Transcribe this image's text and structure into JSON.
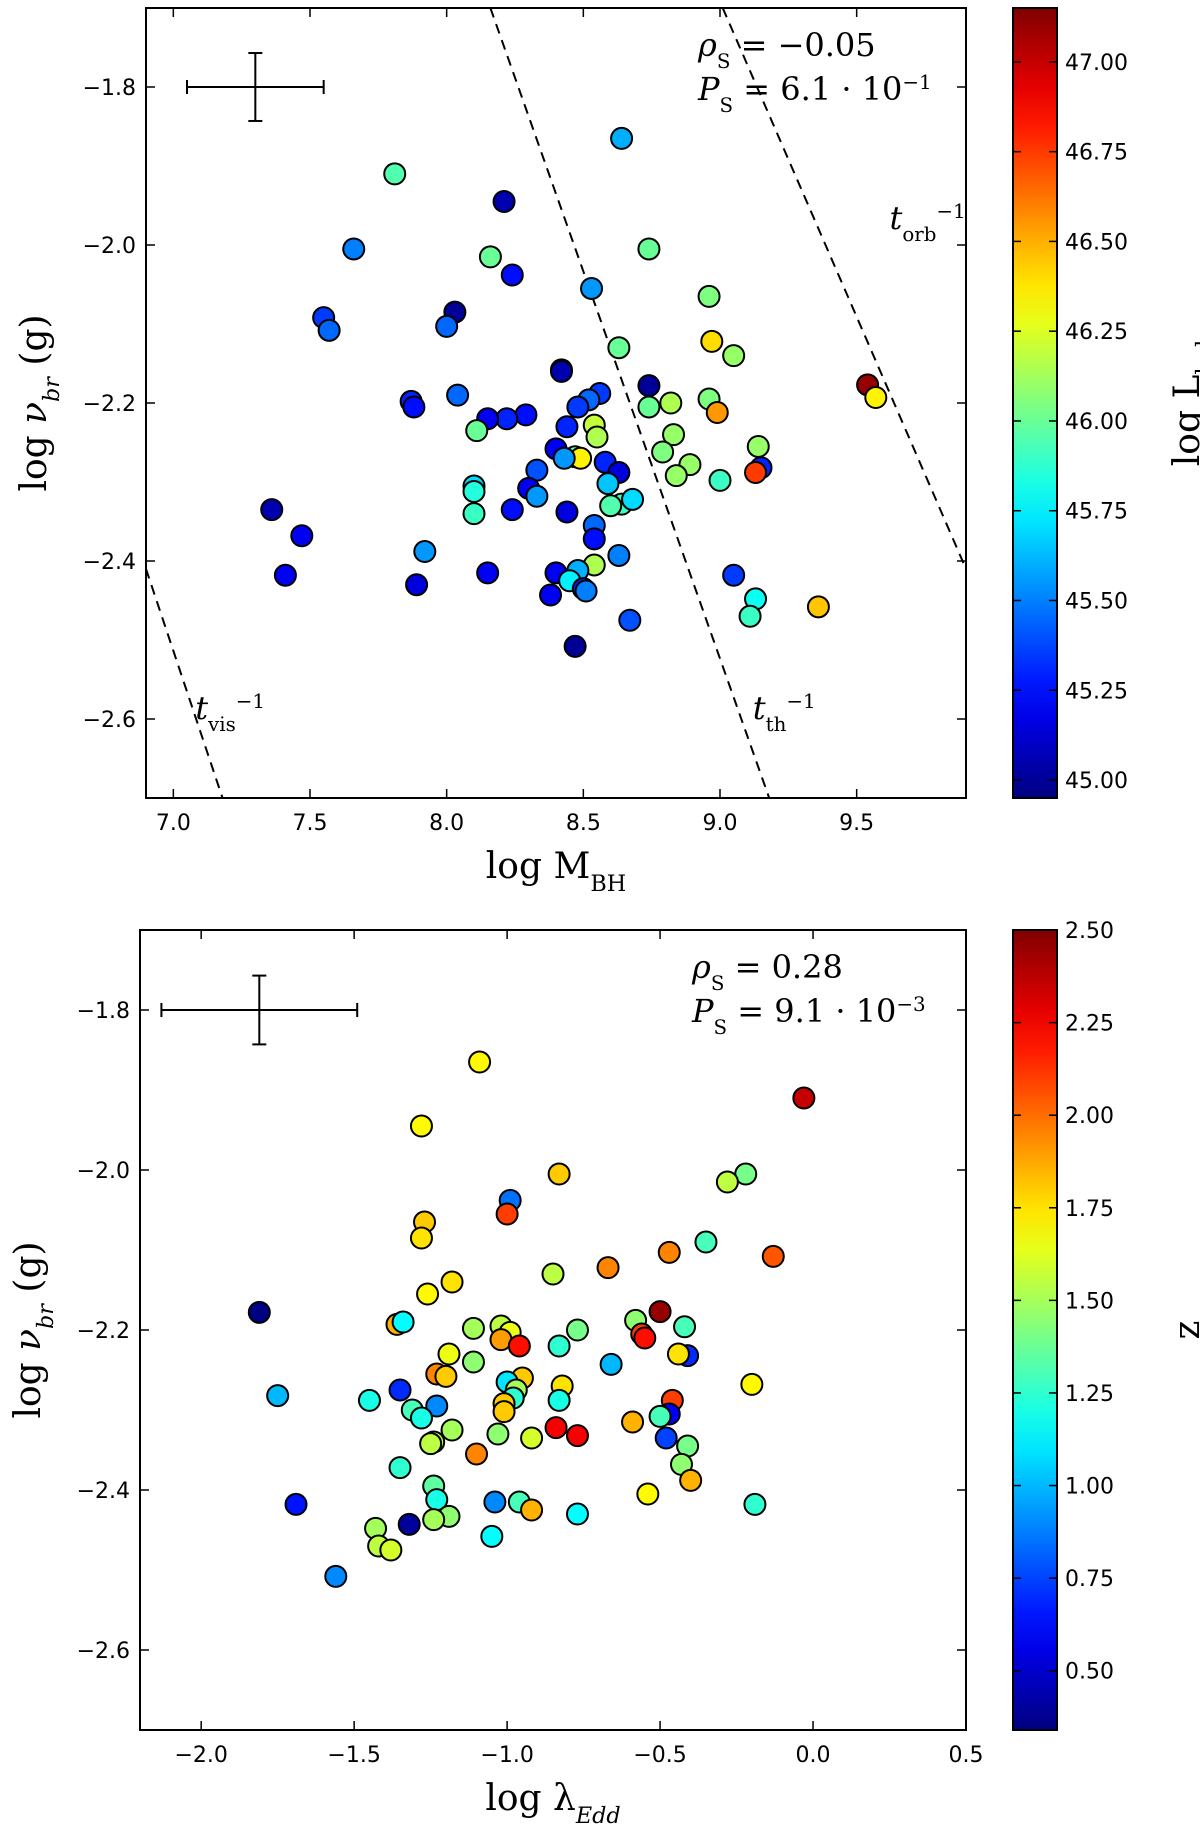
{
  "chart_data": [
    {
      "type": "scatter",
      "xlabel": "log M",
      "xlabel_sub": "BH",
      "ylabel": "log ν",
      "ylabel_sub": "br",
      "ylabel_unit": "(g)",
      "xlim": [
        6.9,
        9.9
      ],
      "ylim": [
        -2.7,
        -1.7
      ],
      "xticks": [
        7.0,
        7.5,
        8.0,
        8.5,
        9.0,
        9.5
      ],
      "xtick_labels": [
        "7.0",
        "7.5",
        "8.0",
        "8.5",
        "9.0",
        "9.5"
      ],
      "yticks": [
        -1.8,
        -2.0,
        -2.2,
        -2.4,
        -2.6
      ],
      "ytick_labels": [
        "−1.8",
        "−2.0",
        "−2.2",
        "−2.4",
        "−2.6"
      ],
      "grid": false,
      "stats": {
        "rho_label": "ρ",
        "rho_sub": "S",
        "rho_value": "= −0.05",
        "p_label": "P",
        "p_sub": "S",
        "p_value": "= 6.1 · 10",
        "p_exp": "−1"
      },
      "error_bar": {
        "x": 7.3,
        "y": -1.8,
        "xerr_low": 0.25,
        "xerr_high": 0.25,
        "yerr": 0.043
      },
      "lines": [
        {
          "label": "t",
          "label_sub": "vis",
          "label_sup": "−1",
          "points": [
            [
              6.9,
              -2.41
            ],
            [
              7.18,
              -2.7
            ]
          ],
          "label_at": [
            7.08,
            -2.6
          ]
        },
        {
          "label": "t",
          "label_sub": "th",
          "label_sup": "−1",
          "points": [
            [
              8.16,
              -1.7
            ],
            [
              9.18,
              -2.7
            ]
          ],
          "label_at": [
            9.12,
            -2.6
          ]
        },
        {
          "label": "t",
          "label_sub": "orb",
          "label_sup": "−1",
          "points": [
            [
              9.01,
              -1.7
            ],
            [
              9.9,
              -2.41
            ]
          ],
          "label_at": [
            9.62,
            -1.98
          ]
        }
      ],
      "colorbar": {
        "label": "log L",
        "label_sub": "bol",
        "min": 44.95,
        "max": 47.15,
        "ticks": [
          45.0,
          45.25,
          45.5,
          45.75,
          46.0,
          46.25,
          46.5,
          46.75,
          47.0
        ],
        "tick_labels": [
          "45.00",
          "45.25",
          "45.50",
          "45.75",
          "46.00",
          "46.25",
          "46.50",
          "46.75",
          "47.00"
        ]
      },
      "points": [
        {
          "x": 8.64,
          "y": -1.865,
          "c": 45.6
        },
        {
          "x": 7.81,
          "y": -1.91,
          "c": 45.95
        },
        {
          "x": 8.21,
          "y": -1.945,
          "c": 45.05
        },
        {
          "x": 7.66,
          "y": -2.005,
          "c": 45.5
        },
        {
          "x": 8.74,
          "y": -2.005,
          "c": 46.0
        },
        {
          "x": 8.16,
          "y": -2.015,
          "c": 46.0
        },
        {
          "x": 8.24,
          "y": -2.038,
          "c": 45.25
        },
        {
          "x": 8.53,
          "y": -2.055,
          "c": 45.55
        },
        {
          "x": 8.96,
          "y": -2.065,
          "c": 46.05
        },
        {
          "x": 8.03,
          "y": -2.085,
          "c": 45.0
        },
        {
          "x": 7.55,
          "y": -2.092,
          "c": 45.35
        },
        {
          "x": 7.57,
          "y": -2.108,
          "c": 45.45
        },
        {
          "x": 8.0,
          "y": -2.103,
          "c": 45.45
        },
        {
          "x": 8.97,
          "y": -2.122,
          "c": 46.4
        },
        {
          "x": 8.63,
          "y": -2.13,
          "c": 46.0
        },
        {
          "x": 9.05,
          "y": -2.14,
          "c": 46.1
        },
        {
          "x": 8.42,
          "y": -2.158,
          "c": 45.2
        },
        {
          "x": 8.42,
          "y": -2.16,
          "c": 45.05
        },
        {
          "x": 9.54,
          "y": -2.177,
          "c": 47.1
        },
        {
          "x": 8.74,
          "y": -2.178,
          "c": 45.0
        },
        {
          "x": 9.57,
          "y": -2.193,
          "c": 46.35
        },
        {
          "x": 8.56,
          "y": -2.188,
          "c": 45.35
        },
        {
          "x": 8.52,
          "y": -2.196,
          "c": 45.45
        },
        {
          "x": 8.04,
          "y": -2.19,
          "c": 45.45
        },
        {
          "x": 7.87,
          "y": -2.198,
          "c": 45.3
        },
        {
          "x": 7.88,
          "y": -2.205,
          "c": 45.25
        },
        {
          "x": 8.82,
          "y": -2.2,
          "c": 46.15
        },
        {
          "x": 8.96,
          "y": -2.195,
          "c": 46.05
        },
        {
          "x": 8.74,
          "y": -2.205,
          "c": 46.0
        },
        {
          "x": 8.48,
          "y": -2.205,
          "c": 45.35
        },
        {
          "x": 8.99,
          "y": -2.212,
          "c": 46.55
        },
        {
          "x": 8.29,
          "y": -2.215,
          "c": 45.25
        },
        {
          "x": 8.22,
          "y": -2.22,
          "c": 45.3
        },
        {
          "x": 8.15,
          "y": -2.22,
          "c": 45.2
        },
        {
          "x": 8.54,
          "y": -2.228,
          "c": 46.2
        },
        {
          "x": 8.44,
          "y": -2.23,
          "c": 45.3
        },
        {
          "x": 8.11,
          "y": -2.235,
          "c": 46.0
        },
        {
          "x": 8.55,
          "y": -2.243,
          "c": 46.15
        },
        {
          "x": 8.83,
          "y": -2.24,
          "c": 46.1
        },
        {
          "x": 9.14,
          "y": -2.255,
          "c": 46.1
        },
        {
          "x": 8.4,
          "y": -2.258,
          "c": 45.2
        },
        {
          "x": 8.79,
          "y": -2.262,
          "c": 46.05
        },
        {
          "x": 8.47,
          "y": -2.268,
          "c": 46.0
        },
        {
          "x": 8.49,
          "y": -2.27,
          "c": 46.35
        },
        {
          "x": 8.43,
          "y": -2.27,
          "c": 45.55
        },
        {
          "x": 8.58,
          "y": -2.275,
          "c": 45.3
        },
        {
          "x": 9.15,
          "y": -2.282,
          "c": 45.3
        },
        {
          "x": 8.33,
          "y": -2.285,
          "c": 45.4
        },
        {
          "x": 8.63,
          "y": -2.288,
          "c": 45.15
        },
        {
          "x": 9.13,
          "y": -2.288,
          "c": 46.75
        },
        {
          "x": 8.89,
          "y": -2.278,
          "c": 46.1
        },
        {
          "x": 8.84,
          "y": -2.292,
          "c": 46.1
        },
        {
          "x": 8.59,
          "y": -2.302,
          "c": 45.65
        },
        {
          "x": 9.0,
          "y": -2.298,
          "c": 45.9
        },
        {
          "x": 8.1,
          "y": -2.305,
          "c": 45.7
        },
        {
          "x": 8.1,
          "y": -2.312,
          "c": 45.85
        },
        {
          "x": 8.3,
          "y": -2.308,
          "c": 45.2
        },
        {
          "x": 8.33,
          "y": -2.318,
          "c": 45.55
        },
        {
          "x": 8.64,
          "y": -2.328,
          "c": 45.9
        },
        {
          "x": 8.6,
          "y": -2.33,
          "c": 45.95
        },
        {
          "x": 8.68,
          "y": -2.322,
          "c": 45.7
        },
        {
          "x": 8.24,
          "y": -2.335,
          "c": 45.25
        },
        {
          "x": 8.1,
          "y": -2.34,
          "c": 45.9
        },
        {
          "x": 8.44,
          "y": -2.338,
          "c": 45.15
        },
        {
          "x": 7.36,
          "y": -2.335,
          "c": 45.05
        },
        {
          "x": 8.54,
          "y": -2.355,
          "c": 45.45
        },
        {
          "x": 8.54,
          "y": -2.372,
          "c": 45.25
        },
        {
          "x": 7.47,
          "y": -2.368,
          "c": 45.2
        },
        {
          "x": 7.92,
          "y": -2.388,
          "c": 45.55
        },
        {
          "x": 8.63,
          "y": -2.393,
          "c": 45.5
        },
        {
          "x": 8.54,
          "y": -2.405,
          "c": 46.15
        },
        {
          "x": 8.4,
          "y": -2.415,
          "c": 45.2
        },
        {
          "x": 8.15,
          "y": -2.415,
          "c": 45.2
        },
        {
          "x": 7.41,
          "y": -2.418,
          "c": 45.2
        },
        {
          "x": 8.48,
          "y": -2.412,
          "c": 45.6
        },
        {
          "x": 9.05,
          "y": -2.418,
          "c": 45.35
        },
        {
          "x": 8.45,
          "y": -2.425,
          "c": 45.75
        },
        {
          "x": 7.89,
          "y": -2.43,
          "c": 45.15
        },
        {
          "x": 8.5,
          "y": -2.435,
          "c": 45.3
        },
        {
          "x": 8.51,
          "y": -2.438,
          "c": 45.5
        },
        {
          "x": 9.13,
          "y": -2.448,
          "c": 45.8
        },
        {
          "x": 8.38,
          "y": -2.443,
          "c": 45.2
        },
        {
          "x": 9.36,
          "y": -2.458,
          "c": 46.45
        },
        {
          "x": 9.11,
          "y": -2.47,
          "c": 45.9
        },
        {
          "x": 8.67,
          "y": -2.475,
          "c": 45.4
        },
        {
          "x": 8.47,
          "y": -2.508,
          "c": 45.0
        }
      ]
    },
    {
      "type": "scatter",
      "xlabel": "log λ",
      "xlabel_sub": "Edd",
      "ylabel": "log ν",
      "ylabel_sub": "br",
      "ylabel_unit": "(g)",
      "xlim": [
        -2.2,
        0.5
      ],
      "ylim": [
        -2.7,
        -1.7
      ],
      "xticks": [
        -2.0,
        -1.5,
        -1.0,
        -0.5,
        0.0,
        0.5
      ],
      "xtick_labels": [
        "−2.0",
        "−1.5",
        "−1.0",
        "−0.5",
        "0.0",
        "0.5"
      ],
      "yticks": [
        -1.8,
        -2.0,
        -2.2,
        -2.4,
        -2.6
      ],
      "ytick_labels": [
        "−1.8",
        "−2.0",
        "−2.2",
        "−2.4",
        "−2.6"
      ],
      "grid": false,
      "stats": {
        "rho_label": "ρ",
        "rho_sub": "S",
        "rho_value": "= 0.28",
        "p_label": "P",
        "p_sub": "S",
        "p_value": "= 9.1 · 10",
        "p_exp": "−3"
      },
      "error_bar": {
        "x": -1.81,
        "y": -1.8,
        "xerr_low": 0.32,
        "xerr_high": 0.32,
        "yerr": 0.043
      },
      "colorbar": {
        "label": "z",
        "label_sub": "",
        "min": 0.34,
        "max": 2.5,
        "ticks": [
          0.5,
          0.75,
          1.0,
          1.25,
          1.5,
          1.75,
          2.0,
          2.25,
          2.5
        ],
        "tick_labels": [
          "0.50",
          "0.75",
          "1.00",
          "1.25",
          "1.50",
          "1.75",
          "2.00",
          "2.25",
          "2.50"
        ]
      },
      "points": [
        {
          "x": -1.09,
          "y": -1.865,
          "c": 1.7
        },
        {
          "x": -0.03,
          "y": -1.91,
          "c": 2.35
        },
        {
          "x": -1.28,
          "y": -1.945,
          "c": 1.7
        },
        {
          "x": -0.83,
          "y": -2.005,
          "c": 1.8
        },
        {
          "x": -0.22,
          "y": -2.005,
          "c": 1.4
        },
        {
          "x": -0.28,
          "y": -2.015,
          "c": 1.55
        },
        {
          "x": -0.99,
          "y": -2.038,
          "c": 0.85
        },
        {
          "x": -1.0,
          "y": -2.055,
          "c": 2.1
        },
        {
          "x": -1.27,
          "y": -2.065,
          "c": 1.8
        },
        {
          "x": -1.28,
          "y": -2.085,
          "c": 1.75
        },
        {
          "x": -0.35,
          "y": -2.09,
          "c": 1.3
        },
        {
          "x": -0.47,
          "y": -2.103,
          "c": 1.95
        },
        {
          "x": -0.13,
          "y": -2.108,
          "c": 2.05
        },
        {
          "x": -0.67,
          "y": -2.122,
          "c": 1.95
        },
        {
          "x": -0.85,
          "y": -2.13,
          "c": 1.55
        },
        {
          "x": -1.18,
          "y": -2.14,
          "c": 1.75
        },
        {
          "x": -1.26,
          "y": -2.155,
          "c": 1.7
        },
        {
          "x": -1.81,
          "y": -2.178,
          "c": 0.35
        },
        {
          "x": -0.5,
          "y": -2.177,
          "c": 2.45
        },
        {
          "x": -1.36,
          "y": -2.193,
          "c": 1.85
        },
        {
          "x": -0.58,
          "y": -2.188,
          "c": 1.45
        },
        {
          "x": -0.42,
          "y": -2.196,
          "c": 1.3
        },
        {
          "x": -1.11,
          "y": -2.198,
          "c": 1.5
        },
        {
          "x": -1.34,
          "y": -2.19,
          "c": 1.15
        },
        {
          "x": -1.02,
          "y": -2.195,
          "c": 1.55
        },
        {
          "x": -0.77,
          "y": -2.2,
          "c": 1.4
        },
        {
          "x": -0.99,
          "y": -2.203,
          "c": 1.65
        },
        {
          "x": -0.56,
          "y": -2.205,
          "c": 2.1
        },
        {
          "x": -0.55,
          "y": -2.21,
          "c": 2.2
        },
        {
          "x": -1.02,
          "y": -2.212,
          "c": 1.9
        },
        {
          "x": -0.96,
          "y": -2.22,
          "c": 2.2
        },
        {
          "x": -0.83,
          "y": -2.22,
          "c": 1.25
        },
        {
          "x": -0.41,
          "y": -2.232,
          "c": 0.7
        },
        {
          "x": -0.44,
          "y": -2.23,
          "c": 1.75
        },
        {
          "x": -1.19,
          "y": -2.23,
          "c": 1.65
        },
        {
          "x": -1.11,
          "y": -2.24,
          "c": 1.45
        },
        {
          "x": -0.66,
          "y": -2.243,
          "c": 1.0
        },
        {
          "x": -1.23,
          "y": -2.255,
          "c": 1.95
        },
        {
          "x": -1.2,
          "y": -2.258,
          "c": 1.8
        },
        {
          "x": -0.95,
          "y": -2.26,
          "c": 1.8
        },
        {
          "x": -1.0,
          "y": -2.265,
          "c": 1.1
        },
        {
          "x": -0.82,
          "y": -2.27,
          "c": 1.75
        },
        {
          "x": -0.2,
          "y": -2.268,
          "c": 1.7
        },
        {
          "x": -0.97,
          "y": -2.275,
          "c": 1.5
        },
        {
          "x": -1.75,
          "y": -2.282,
          "c": 1.0
        },
        {
          "x": -1.35,
          "y": -2.275,
          "c": 0.7
        },
        {
          "x": -0.46,
          "y": -2.288,
          "c": 2.1
        },
        {
          "x": -1.45,
          "y": -2.288,
          "c": 1.2
        },
        {
          "x": -0.98,
          "y": -2.285,
          "c": 1.25
        },
        {
          "x": -1.01,
          "y": -2.292,
          "c": 1.8
        },
        {
          "x": -0.83,
          "y": -2.288,
          "c": 1.2
        },
        {
          "x": -1.23,
          "y": -2.295,
          "c": 0.9
        },
        {
          "x": -1.01,
          "y": -2.302,
          "c": 1.8
        },
        {
          "x": -0.47,
          "y": -2.305,
          "c": 0.6
        },
        {
          "x": -1.31,
          "y": -2.3,
          "c": 1.3
        },
        {
          "x": -0.5,
          "y": -2.308,
          "c": 1.3
        },
        {
          "x": -1.28,
          "y": -2.31,
          "c": 1.2
        },
        {
          "x": -0.59,
          "y": -2.315,
          "c": 1.85
        },
        {
          "x": -0.84,
          "y": -2.322,
          "c": 2.25
        },
        {
          "x": -1.18,
          "y": -2.325,
          "c": 1.5
        },
        {
          "x": -1.03,
          "y": -2.33,
          "c": 1.45
        },
        {
          "x": -0.77,
          "y": -2.332,
          "c": 2.25
        },
        {
          "x": -0.48,
          "y": -2.335,
          "c": 0.75
        },
        {
          "x": -0.92,
          "y": -2.335,
          "c": 1.6
        },
        {
          "x": -1.24,
          "y": -2.34,
          "c": 1.55
        },
        {
          "x": -1.25,
          "y": -2.342,
          "c": 1.55
        },
        {
          "x": -1.1,
          "y": -2.355,
          "c": 1.95
        },
        {
          "x": -0.41,
          "y": -2.345,
          "c": 1.4
        },
        {
          "x": -0.43,
          "y": -2.368,
          "c": 1.45
        },
        {
          "x": -1.35,
          "y": -2.372,
          "c": 1.25
        },
        {
          "x": -0.4,
          "y": -2.388,
          "c": 1.85
        },
        {
          "x": -1.24,
          "y": -2.395,
          "c": 1.35
        },
        {
          "x": -0.54,
          "y": -2.405,
          "c": 1.7
        },
        {
          "x": -1.23,
          "y": -2.412,
          "c": 1.2
        },
        {
          "x": -1.04,
          "y": -2.415,
          "c": 0.9
        },
        {
          "x": -0.96,
          "y": -2.415,
          "c": 1.3
        },
        {
          "x": -1.69,
          "y": -2.418,
          "c": 0.65
        },
        {
          "x": -0.19,
          "y": -2.418,
          "c": 1.25
        },
        {
          "x": -0.92,
          "y": -2.425,
          "c": 1.85
        },
        {
          "x": -0.77,
          "y": -2.43,
          "c": 1.15
        },
        {
          "x": -1.19,
          "y": -2.433,
          "c": 1.45
        },
        {
          "x": -1.24,
          "y": -2.437,
          "c": 1.5
        },
        {
          "x": -1.43,
          "y": -2.448,
          "c": 1.5
        },
        {
          "x": -1.32,
          "y": -2.443,
          "c": 0.4
        },
        {
          "x": -1.05,
          "y": -2.458,
          "c": 1.15
        },
        {
          "x": -1.42,
          "y": -2.47,
          "c": 1.55
        },
        {
          "x": -1.38,
          "y": -2.475,
          "c": 1.6
        },
        {
          "x": -1.56,
          "y": -2.508,
          "c": 0.9
        }
      ]
    }
  ]
}
